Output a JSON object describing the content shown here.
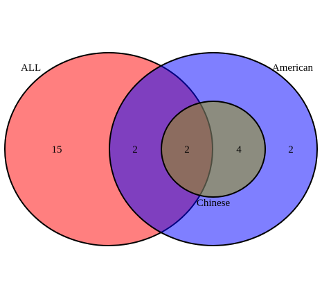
{
  "sets": [
    {
      "key": "all",
      "label": "ALL",
      "color": "#ff0000"
    },
    {
      "key": "american",
      "label": "American",
      "color": "#0000ff"
    },
    {
      "key": "chinese",
      "label": "Chinese",
      "color": "#999900"
    }
  ],
  "regions": [
    {
      "key": "all_only",
      "count": "15"
    },
    {
      "key": "all_and_american",
      "count": "2"
    },
    {
      "key": "all_and_american_and_chinese",
      "count": "2"
    },
    {
      "key": "american_and_chinese",
      "count": "4"
    },
    {
      "key": "american_only",
      "count": "2"
    }
  ]
}
